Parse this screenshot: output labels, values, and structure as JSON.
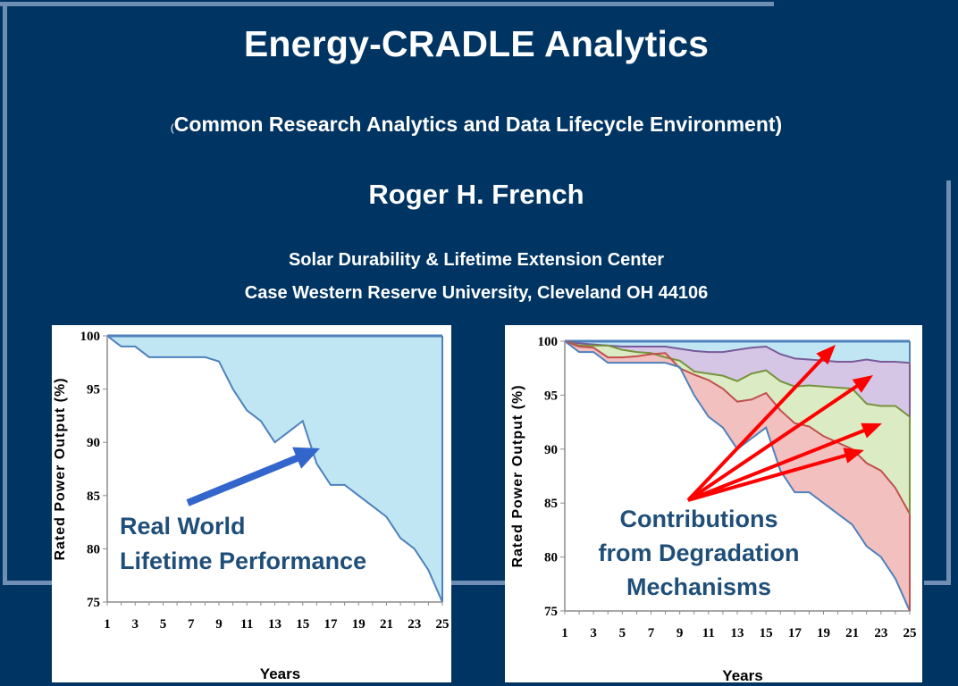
{
  "header": {
    "title": "Energy-CRADLE Analytics",
    "subtitle_open": "(",
    "subtitle_rest": "Common Research Analytics and Data Lifecycle Environment)",
    "author": "Roger H. French",
    "affiliation_line1": "Solar Durability & Lifetime Extension Center",
    "affiliation_line2": "Case Western Reserve University, Cleveland OH 44106"
  },
  "colors": {
    "background": "#003462",
    "frame": "#6e8fb3",
    "fill_blue": "#bfe6f2",
    "line_blue": "#4f81bd",
    "fill_purple": "#d5c6e6",
    "line_purple": "#7a5a9b",
    "fill_green": "#dbecc4",
    "line_green": "#77933c",
    "fill_red": "#f3c0c0",
    "line_red": "#c0504d",
    "arrow_red": "#ff0000",
    "arrow_blue": "#3366cc",
    "annotation_text": "#1f4e79"
  },
  "chart_data": [
    {
      "type": "area",
      "ylabel": "Rated Power Output (%)",
      "xlabel": "Years",
      "xlim": [
        1,
        25
      ],
      "ylim": [
        75,
        100
      ],
      "x_ticks": [
        1,
        3,
        5,
        7,
        9,
        11,
        13,
        15,
        17,
        19,
        21,
        23,
        25
      ],
      "y_ticks": [
        75,
        80,
        85,
        90,
        95,
        100
      ],
      "x": [
        1,
        2,
        3,
        4,
        5,
        6,
        7,
        8,
        9,
        10,
        11,
        12,
        13,
        14,
        15,
        16,
        17,
        18,
        19,
        20,
        21,
        22,
        23,
        24,
        25
      ],
      "series": [
        {
          "values": [
            100,
            99,
            99,
            98,
            98,
            98,
            98,
            98,
            97.6,
            95,
            93,
            92,
            90,
            91,
            92,
            88,
            86,
            86,
            85,
            84,
            83,
            81,
            80,
            78,
            75
          ]
        }
      ],
      "upper_bound": 100,
      "annotation": {
        "line1": "Real World",
        "line2": "Lifetime Performance"
      }
    },
    {
      "type": "area",
      "ylabel": "Rated Power Output (%)",
      "xlabel": "Years",
      "xlim": [
        1,
        25
      ],
      "ylim": [
        75,
        100
      ],
      "x_ticks": [
        1,
        3,
        5,
        7,
        9,
        11,
        13,
        15,
        17,
        19,
        21,
        23,
        25
      ],
      "y_ticks": [
        75,
        80,
        85,
        90,
        95,
        100
      ],
      "x": [
        1,
        2,
        3,
        4,
        5,
        6,
        7,
        8,
        9,
        10,
        11,
        12,
        13,
        14,
        15,
        16,
        17,
        18,
        19,
        20,
        21,
        22,
        23,
        24,
        25
      ],
      "series": [
        {
          "values": [
            100,
            100,
            100,
            100,
            100,
            100,
            100,
            100,
            100,
            100,
            100,
            100,
            100,
            100,
            100,
            100,
            100,
            100,
            100,
            100,
            100,
            100,
            100,
            100,
            100
          ]
        },
        {
          "values": [
            100,
            99.8,
            99.7,
            99.6,
            99.5,
            99.5,
            99.5,
            99.5,
            99.3,
            99.1,
            99.0,
            99.0,
            99.2,
            99.4,
            99.5,
            98.8,
            98.4,
            98.3,
            98.2,
            98.1,
            98.1,
            98.3,
            98.1,
            98.1,
            98
          ]
        },
        {
          "values": [
            100,
            99.6,
            99.6,
            99.6,
            99.2,
            99.0,
            98.9,
            98.5,
            98.2,
            97.2,
            97.0,
            96.8,
            96.3,
            97.0,
            97.3,
            96.3,
            95.8,
            95.9,
            95.8,
            95.7,
            95.6,
            94.2,
            94.0,
            94.0,
            93
          ]
        },
        {
          "values": [
            100,
            99.5,
            99.4,
            98.5,
            98.5,
            98.6,
            98.8,
            98.9,
            97.5,
            96.9,
            96.4,
            95.6,
            94.4,
            94.6,
            95.2,
            93.6,
            92.4,
            92.1,
            91.2,
            90.6,
            90.0,
            88.7,
            88.0,
            86.4,
            84
          ]
        },
        {
          "values": [
            100,
            99,
            99,
            98,
            98,
            98,
            98,
            98,
            97.6,
            95,
            93,
            92,
            90,
            91,
            92,
            88,
            86,
            86,
            85,
            84,
            83,
            81,
            80,
            78,
            75
          ]
        }
      ],
      "annotation": {
        "line1": "Contributions",
        "line2": "from Degradation",
        "line3": "Mechanisms"
      }
    }
  ]
}
